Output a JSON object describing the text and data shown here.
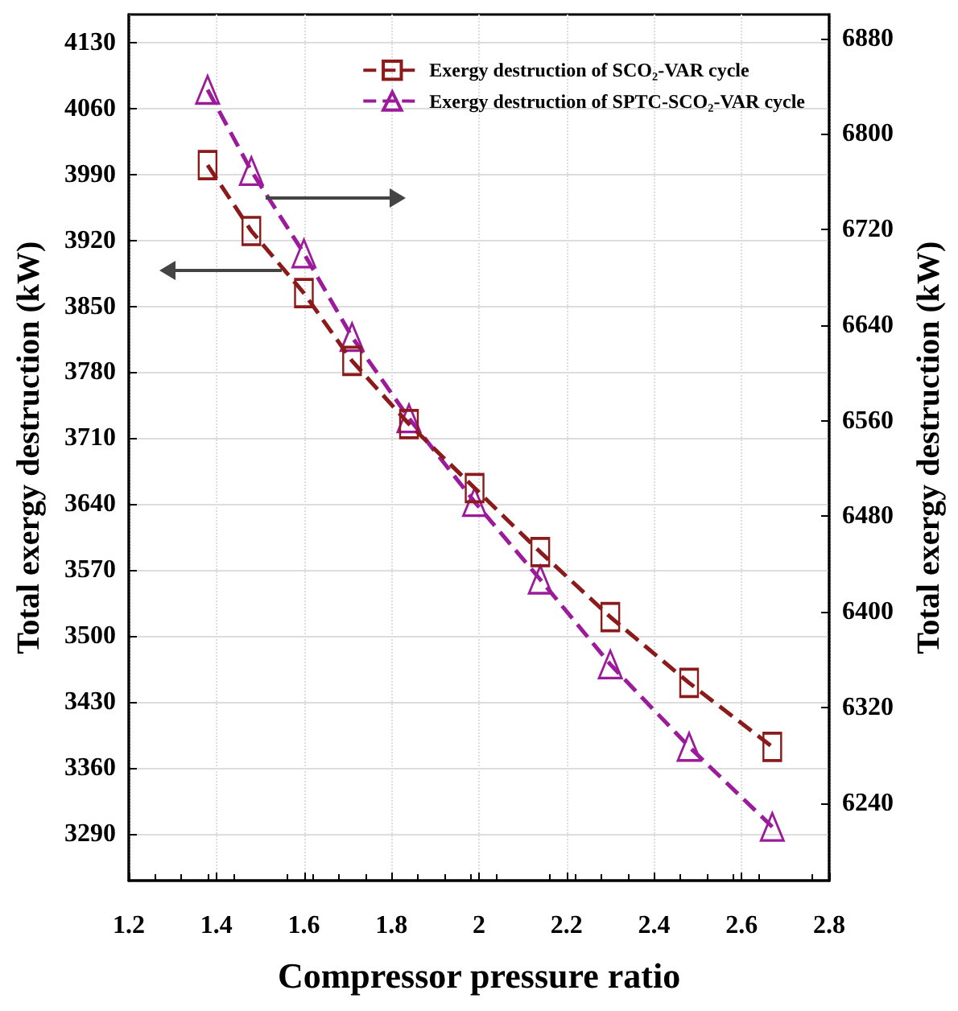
{
  "chart_data": {
    "type": "line",
    "xlabel": "Compressor pressure ratio",
    "ylabel": "Total exergy destruction (kW)",
    "y2label": "Total exergy destruction (kW)",
    "x": [
      1.38,
      1.48,
      1.6,
      1.71,
      1.84,
      1.99,
      2.14,
      2.3,
      2.48,
      2.67
    ],
    "series": [
      {
        "name": "Exergy destruction of SCO₂-VAR cycle",
        "color": "#8b1a1a",
        "marker": "square",
        "values": [
          4000,
          3930,
          3864,
          3792,
          3725,
          3657,
          3589,
          3520,
          3450,
          3382
        ]
      },
      {
        "name": "Exergy destruction of SPTC-SCO₂-VAR cycle",
        "color": "#9b1b9b",
        "marker": "triangle",
        "axis": "y2",
        "values": [
          6837,
          6769,
          6700,
          6630,
          6562,
          6492,
          6427,
          6356,
          6287,
          6220
        ]
      }
    ],
    "xlim": [
      1.2,
      2.8
    ],
    "xticks": [
      1.2,
      1.4,
      1.6,
      1.8,
      2,
      2.2,
      2.4,
      2.6,
      2.8
    ],
    "ylim": [
      3240,
      4160
    ],
    "yticks": [
      3290,
      3360,
      3430,
      3500,
      3570,
      3640,
      3710,
      3780,
      3850,
      3920,
      3990,
      4060,
      4130
    ],
    "y2lim": [
      6175,
      6900
    ],
    "y2ticks": [
      6240,
      6320,
      6400,
      6480,
      6560,
      6640,
      6720,
      6800,
      6880
    ],
    "grid": true,
    "legend": "top right",
    "line_style": "dashed"
  }
}
